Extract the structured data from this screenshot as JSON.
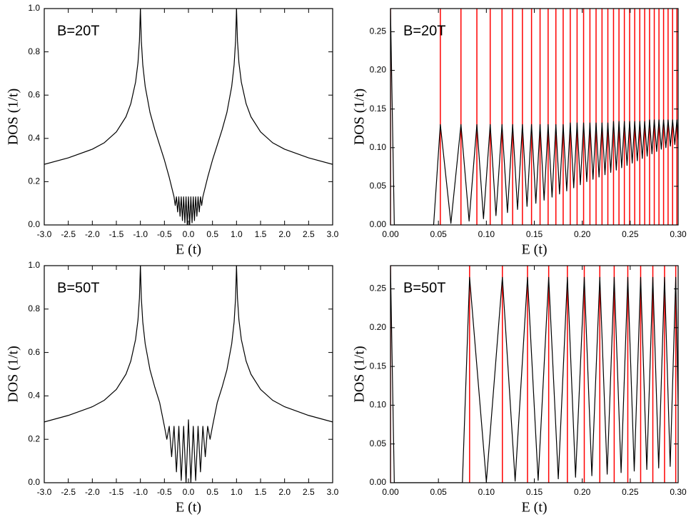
{
  "chart_data": [
    {
      "type": "line",
      "label": "B=20T",
      "xlabel": "E (t)",
      "ylabel": "DOS (1/t)",
      "x": [
        -3,
        -2.5,
        -2,
        -1.75,
        -1.5,
        -1.3,
        -1.2,
        -1.1,
        -1.05,
        -1.02,
        -1,
        -0.98,
        -0.95,
        -0.9,
        -0.8,
        -0.7,
        -0.6,
        -0.5,
        -0.4,
        -0.3,
        -0.275,
        -0.25,
        -0.225,
        -0.2,
        -0.175,
        -0.15,
        -0.125,
        -0.1,
        -0.075,
        -0.05,
        -0.025,
        0,
        0.025,
        0.05,
        0.075,
        0.1,
        0.125,
        0.15,
        0.175,
        0.2,
        0.225,
        0.25,
        0.275,
        0.3,
        0.4,
        0.5,
        0.6,
        0.7,
        0.8,
        0.9,
        0.95,
        0.98,
        1,
        1.02,
        1.05,
        1.1,
        1.2,
        1.3,
        1.5,
        1.75,
        2,
        2.5,
        3
      ],
      "series": [
        {
          "color": "#000000",
          "values": [
            0.28,
            0.31,
            0.35,
            0.38,
            0.43,
            0.5,
            0.56,
            0.66,
            0.75,
            0.85,
            1.0,
            0.85,
            0.74,
            0.64,
            0.52,
            0.44,
            0.37,
            0.3,
            0.22,
            0.13,
            0.09,
            0.13,
            0.06,
            0.13,
            0.04,
            0.13,
            0.02,
            0.13,
            0.01,
            0.13,
            0,
            0.13,
            0,
            0.13,
            0.01,
            0.13,
            0.02,
            0.13,
            0.04,
            0.13,
            0.06,
            0.13,
            0.09,
            0.13,
            0.22,
            0.3,
            0.37,
            0.44,
            0.52,
            0.64,
            0.74,
            0.85,
            1.0,
            0.85,
            0.75,
            0.66,
            0.56,
            0.5,
            0.43,
            0.38,
            0.35,
            0.31,
            0.28
          ]
        }
      ],
      "xlim": [
        -3,
        3
      ],
      "ylim": [
        0,
        1
      ],
      "xticks": [
        {
          "value": -3,
          "label": "-3.0"
        },
        {
          "value": -2.5,
          "label": "-2.5"
        },
        {
          "value": -2,
          "label": "-2.0"
        },
        {
          "value": -1.5,
          "label": "-1.5"
        },
        {
          "value": -1,
          "label": "-1.0"
        },
        {
          "value": -0.5,
          "label": "-0.5"
        },
        {
          "value": 0,
          "label": "0.0"
        },
        0.5,
        {
          "value": 1,
          "label": "1.0"
        },
        1.5,
        {
          "value": 2,
          "label": "2.0"
        },
        2.5,
        {
          "value": 3,
          "label": "3.0"
        }
      ],
      "yticks": [
        {
          "value": 0,
          "label": "0.0"
        },
        0.2,
        0.4,
        0.6,
        0.8,
        {
          "value": 1,
          "label": "1.0"
        }
      ]
    },
    {
      "type": "line",
      "label": "B=20T",
      "xlabel": "E (t)",
      "ylabel": "DOS (1/t)",
      "x": [
        0,
        0.004,
        0.045,
        0.052,
        0.063,
        0.0735,
        0.082,
        0.0901,
        0.097,
        0.104,
        0.11,
        0.1163,
        0.122,
        0.1274,
        0.1325,
        0.1376,
        0.1424,
        0.1471,
        0.1516,
        0.156,
        0.1602,
        0.1644,
        0.1685,
        0.1725,
        0.1763,
        0.1801,
        0.1838,
        0.1875,
        0.1911,
        0.1946,
        0.198,
        0.2014,
        0.2047,
        0.208,
        0.2112,
        0.2144,
        0.2175,
        0.2206,
        0.2237,
        0.2267,
        0.2297,
        0.2326,
        0.2355,
        0.2383,
        0.2411,
        0.2439,
        0.2467,
        0.2494,
        0.2521,
        0.2547,
        0.2574,
        0.26,
        0.2626,
        0.2651,
        0.2677,
        0.2702,
        0.2727,
        0.2751,
        0.2776,
        0.28,
        0.2824,
        0.2848,
        0.2872,
        0.2895,
        0.2919,
        0.2942,
        0.2965,
        0.2987,
        0.3
      ],
      "series": [
        {
          "color": "#000000",
          "values": [
            0.28,
            0,
            0,
            0.13,
            0.002,
            0.13,
            0.005,
            0.13,
            0.008,
            0.13,
            0.012,
            0.13,
            0.016,
            0.13,
            0.02,
            0.13,
            0.024,
            0.13,
            0.028,
            0.13,
            0.032,
            0.13,
            0.036,
            0.13,
            0.04,
            0.13,
            0.044,
            0.132,
            0.048,
            0.132,
            0.052,
            0.132,
            0.056,
            0.132,
            0.059,
            0.132,
            0.062,
            0.132,
            0.065,
            0.132,
            0.068,
            0.134,
            0.071,
            0.134,
            0.074,
            0.134,
            0.077,
            0.134,
            0.08,
            0.134,
            0.083,
            0.134,
            0.086,
            0.134,
            0.089,
            0.136,
            0.092,
            0.136,
            0.095,
            0.136,
            0.098,
            0.136,
            0.1,
            0.136,
            0.102,
            0.136,
            0.104,
            0.136,
            0.11
          ]
        }
      ],
      "levels": {
        "color": "#ff0000",
        "x": [
          0,
          0.052,
          0.0735,
          0.0901,
          0.104,
          0.1163,
          0.1274,
          0.1376,
          0.1471,
          0.156,
          0.1644,
          0.1725,
          0.1801,
          0.1875,
          0.1946,
          0.2014,
          0.208,
          0.2144,
          0.2206,
          0.2267,
          0.2326,
          0.2383,
          0.2439,
          0.2494,
          0.2547,
          0.26,
          0.2651,
          0.2702,
          0.2751,
          0.28,
          0.2848,
          0.2895,
          0.2942,
          0.2987
        ]
      },
      "xlim": [
        0,
        0.3
      ],
      "ylim": [
        0,
        0.28
      ],
      "xticks": [
        {
          "value": 0,
          "label": "0.00"
        },
        0.05,
        {
          "value": 0.1,
          "label": "0.10"
        },
        0.15,
        {
          "value": 0.2,
          "label": "0.20"
        },
        0.25,
        {
          "value": 0.3,
          "label": "0.30"
        }
      ],
      "yticks": [
        {
          "value": 0,
          "label": "0.00"
        },
        0.05,
        {
          "value": 0.1,
          "label": "0.10"
        },
        0.15,
        {
          "value": 0.2,
          "label": "0.20"
        },
        0.25
      ]
    },
    {
      "type": "line",
      "label": "B=50T",
      "xlabel": "E (t)",
      "ylabel": "DOS (1/t)",
      "x": [
        -3,
        -2.5,
        -2,
        -1.75,
        -1.5,
        -1.3,
        -1.2,
        -1.1,
        -1.05,
        -1.02,
        -1,
        -0.98,
        -0.95,
        -0.9,
        -0.8,
        -0.7,
        -0.6,
        -0.5,
        -0.45,
        -0.4,
        -0.35,
        -0.3,
        -0.25,
        -0.2,
        -0.15,
        -0.1,
        -0.05,
        0,
        0.05,
        0.1,
        0.15,
        0.2,
        0.25,
        0.3,
        0.35,
        0.4,
        0.45,
        0.5,
        0.6,
        0.7,
        0.8,
        0.9,
        0.95,
        0.98,
        1,
        1.02,
        1.05,
        1.1,
        1.2,
        1.3,
        1.5,
        1.75,
        2,
        2.5,
        3
      ],
      "series": [
        {
          "color": "#000000",
          "values": [
            0.28,
            0.31,
            0.35,
            0.38,
            0.43,
            0.5,
            0.56,
            0.66,
            0.75,
            0.85,
            1.0,
            0.85,
            0.74,
            0.64,
            0.52,
            0.44,
            0.37,
            0.26,
            0.2,
            0.26,
            0.12,
            0.26,
            0.05,
            0.26,
            0.01,
            0.26,
            0,
            0.29,
            0,
            0.26,
            0.01,
            0.26,
            0.05,
            0.26,
            0.12,
            0.26,
            0.2,
            0.26,
            0.37,
            0.44,
            0.52,
            0.64,
            0.74,
            0.85,
            1.0,
            0.85,
            0.75,
            0.66,
            0.56,
            0.5,
            0.43,
            0.38,
            0.35,
            0.31,
            0.28
          ]
        }
      ],
      "xlim": [
        -3,
        3
      ],
      "ylim": [
        0,
        1
      ],
      "xticks": [
        {
          "value": -3,
          "label": "-3.0"
        },
        {
          "value": -2.5,
          "label": "-2.5"
        },
        {
          "value": -2,
          "label": "-2.0"
        },
        {
          "value": -1.5,
          "label": "-1.5"
        },
        {
          "value": -1,
          "label": "-1.0"
        },
        {
          "value": -0.5,
          "label": "-0.5"
        },
        {
          "value": 0,
          "label": "0.0"
        },
        0.5,
        {
          "value": 1,
          "label": "1.0"
        },
        1.5,
        {
          "value": 2,
          "label": "2.0"
        },
        2.5,
        {
          "value": 3,
          "label": "3.0"
        }
      ],
      "yticks": [
        {
          "value": 0,
          "label": "0.0"
        },
        0.2,
        0.4,
        0.6,
        0.8,
        {
          "value": 1,
          "label": "1.0"
        }
      ]
    },
    {
      "type": "line",
      "label": "B=50T",
      "xlabel": "E (t)",
      "ylabel": "DOS (1/t)",
      "x": [
        0,
        0.004,
        0.075,
        0.0825,
        0.1,
        0.1167,
        0.13,
        0.1429,
        0.154,
        0.165,
        0.175,
        0.1845,
        0.193,
        0.2021,
        0.21,
        0.2183,
        0.226,
        0.2333,
        0.2405,
        0.2475,
        0.2542,
        0.2609,
        0.2673,
        0.2736,
        0.2797,
        0.2858,
        0.2917,
        0.2975,
        0.3
      ],
      "series": [
        {
          "color": "#000000",
          "values": [
            0.28,
            0,
            0,
            0.265,
            0.001,
            0.265,
            0.002,
            0.265,
            0.003,
            0.265,
            0.005,
            0.265,
            0.007,
            0.265,
            0.009,
            0.265,
            0.011,
            0.265,
            0.013,
            0.265,
            0.015,
            0.265,
            0.017,
            0.265,
            0.019,
            0.265,
            0.021,
            0.265,
            0.1
          ]
        }
      ],
      "levels": {
        "color": "#ff0000",
        "x": [
          0,
          0.0825,
          0.1167,
          0.1429,
          0.165,
          0.1845,
          0.2021,
          0.2183,
          0.2333,
          0.2475,
          0.2609,
          0.2736,
          0.2858,
          0.2975
        ]
      },
      "xlim": [
        0,
        0.3
      ],
      "ylim": [
        0,
        0.28
      ],
      "xticks": [
        {
          "value": 0,
          "label": "0.00"
        },
        0.05,
        {
          "value": 0.1,
          "label": "0.10"
        },
        0.15,
        {
          "value": 0.2,
          "label": "0.20"
        },
        0.25,
        {
          "value": 0.3,
          "label": "0.30"
        }
      ],
      "yticks": [
        {
          "value": 0,
          "label": "0.00"
        },
        0.05,
        {
          "value": 0.1,
          "label": "0.10"
        },
        0.15,
        {
          "value": 0.2,
          "label": "0.20"
        },
        0.25
      ]
    }
  ]
}
